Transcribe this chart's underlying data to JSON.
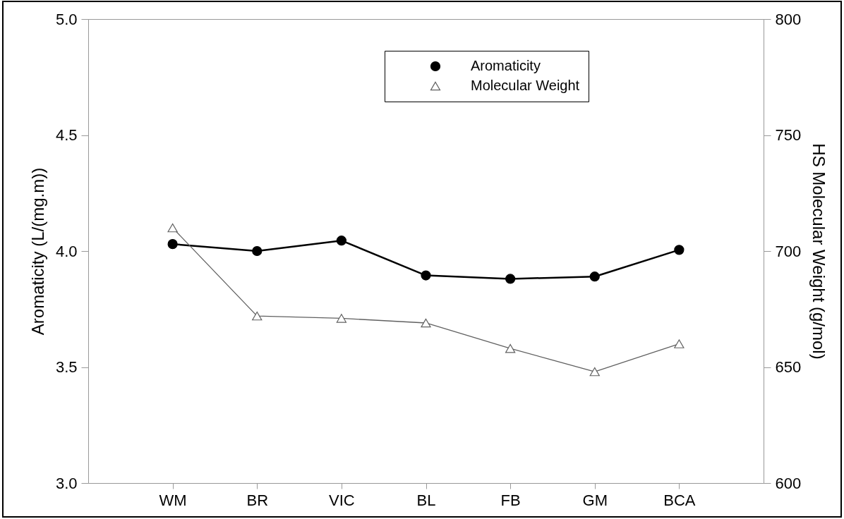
{
  "chart_data": {
    "type": "line",
    "ylabel": "Aromaticity (L/(mg.m))",
    "y2label": "HS Molecular Weight (g/mol)",
    "categories": [
      "WM",
      "BR",
      "VIC",
      "BL",
      "FB",
      "GM",
      "BCA"
    ],
    "ylim": [
      3.0,
      5.0
    ],
    "yticks": [
      {
        "value": 3,
        "label": "3.0"
      },
      3.5,
      {
        "value": 4,
        "label": "4.0"
      },
      4.5,
      {
        "value": 5,
        "label": "5.0"
      }
    ],
    "y2lim": [
      600,
      800
    ],
    "y2ticks": [
      600,
      650,
      700,
      750,
      800
    ],
    "grid": false,
    "legend": "top right",
    "series": [
      {
        "name": "Aromaticity",
        "color": "#000000",
        "marker": "circle",
        "values": [
          4.03,
          4.0,
          4.045,
          3.895,
          3.88,
          3.89,
          4.005
        ]
      },
      {
        "name": "Molecular Weight",
        "color": "#606060",
        "marker": "triangle",
        "axis": "y2",
        "values": [
          710,
          672,
          671,
          669,
          658,
          648,
          660
        ]
      }
    ]
  }
}
